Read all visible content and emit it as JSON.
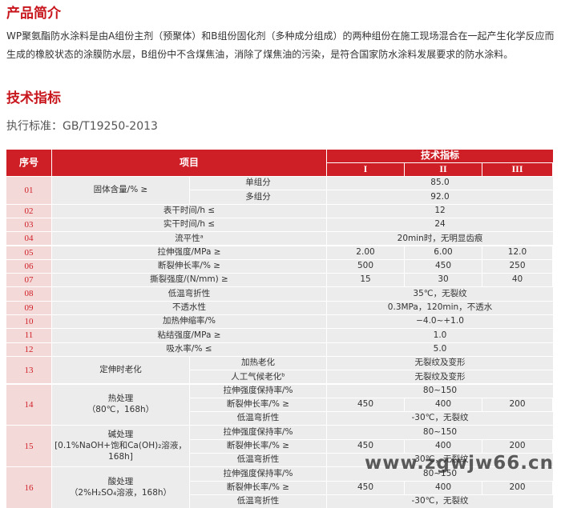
{
  "intro": {
    "title": "产品简介",
    "text": "WP聚氨酯防水涂料是由A组份主剂（预聚体）和B组份固化剂（多种成分组成）的两种组份在施工现场混合在一起产生化学反应而生成的橡胶状态的涂膜防水层，B组份中不含煤焦油，消除了煤焦油的污染，是符合国家防水涂料发展要求的防水涂料。"
  },
  "spec": {
    "title": "技术指标",
    "standard": "执行标准：GB/T19250-2013"
  },
  "table": {
    "header": {
      "no": "序号",
      "item": "项目",
      "spec": "技术指标",
      "grades": [
        "I",
        "II",
        "III"
      ]
    },
    "rows": [
      {
        "no": "01",
        "item": "固体含量/% ≥",
        "lines": [
          {
            "label": "单组分",
            "values": [
              "85.0"
            ]
          },
          {
            "label": "多组分",
            "values": [
              "92.0"
            ]
          }
        ]
      },
      {
        "no": "02",
        "item": "表干时间/h ≤",
        "lines": [
          {
            "values": [
              "12"
            ]
          }
        ]
      },
      {
        "no": "03",
        "item": "实干时间/h ≤",
        "lines": [
          {
            "values": [
              "24"
            ]
          }
        ]
      },
      {
        "no": "04",
        "item": "流平性ᵃ",
        "lines": [
          {
            "values": [
              "20min时，无明显齿痕"
            ]
          }
        ]
      },
      {
        "no": "05",
        "item": "拉伸强度/MPa ≥",
        "lines": [
          {
            "values": [
              "2.00",
              "6.00",
              "12.0"
            ]
          }
        ]
      },
      {
        "no": "06",
        "item": "断裂伸长率/% ≥",
        "lines": [
          {
            "values": [
              "500",
              "450",
              "250"
            ]
          }
        ]
      },
      {
        "no": "07",
        "item": "撕裂强度/(N/mm) ≥",
        "lines": [
          {
            "values": [
              "15",
              "30",
              "40"
            ]
          }
        ]
      },
      {
        "no": "08",
        "item": "低温弯折性",
        "lines": [
          {
            "values": [
              "35℃，无裂纹"
            ]
          }
        ]
      },
      {
        "no": "09",
        "item": "不透水性",
        "lines": [
          {
            "values": [
              "0.3MPa，120min，不透水"
            ]
          }
        ]
      },
      {
        "no": "10",
        "item": "加热伸缩率/%",
        "lines": [
          {
            "values": [
              "−4.0~+1.0"
            ]
          }
        ]
      },
      {
        "no": "11",
        "item": "粘结强度/MPa ≥",
        "lines": [
          {
            "values": [
              "1.0"
            ]
          }
        ]
      },
      {
        "no": "12",
        "item": "吸水率/% ≤",
        "lines": [
          {
            "values": [
              "5.0"
            ]
          }
        ]
      },
      {
        "no": "13",
        "item": "定伸时老化",
        "lines": [
          {
            "label": "加热老化",
            "values": [
              "无裂纹及变形"
            ]
          },
          {
            "label": "人工气候老化ᵇ",
            "values": [
              "无裂纹及变形"
            ]
          }
        ]
      },
      {
        "no": "14",
        "item": "热处理\n（80℃，168h）",
        "lines": [
          {
            "label": "拉伸强度保持率/%",
            "values": [
              "80~150"
            ]
          },
          {
            "label": "断裂伸长率/% ≥",
            "values": [
              "450",
              "400",
              "200"
            ]
          },
          {
            "label": "低温弯折性",
            "values": [
              "-30℃，无裂纹"
            ]
          }
        ]
      },
      {
        "no": "15",
        "item": "碱处理\n[0.1%NaOH+饱和Ca(OH)₂溶液，\n168h]",
        "lines": [
          {
            "label": "拉伸强度保持率/%",
            "values": [
              "80~150"
            ]
          },
          {
            "label": "断裂伸长率/% ≥",
            "values": [
              "450",
              "400",
              "200"
            ]
          },
          {
            "label": "低温弯折性",
            "values": [
              "-30℃，无裂纹"
            ]
          }
        ]
      },
      {
        "no": "16",
        "item": "酸处理\n（2%H₂SO₄溶液，168h）",
        "lines": [
          {
            "label": "拉伸强度保持率/%",
            "values": [
              "80~150"
            ]
          },
          {
            "label": "断裂伸长率/% ≥",
            "values": [
              "450",
              "400",
              "200"
            ]
          },
          {
            "label": "低温弯折性",
            "values": [
              "-30℃，无裂纹"
            ]
          }
        ]
      }
    ]
  },
  "watermark": "www.zgwjw66.cn"
}
